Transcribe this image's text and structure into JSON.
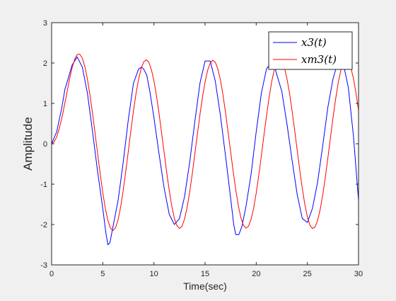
{
  "chart_data": {
    "type": "line",
    "title": "",
    "xlabel": "Time(sec)",
    "ylabel": "Amplitude",
    "xlim": [
      0,
      30
    ],
    "ylim": [
      -3,
      3
    ],
    "x_ticks": [
      0,
      5,
      10,
      15,
      20,
      25,
      30
    ],
    "y_ticks": [
      -3,
      -2,
      -1,
      0,
      1,
      2,
      3
    ],
    "x_tick_labels": [
      "0",
      "5",
      "10",
      "15",
      "20",
      "25",
      "30"
    ],
    "y_tick_labels": [
      "-3",
      "-2",
      "-1",
      "0",
      "1",
      "2",
      "3"
    ],
    "grid": false,
    "legend_position": "top-right",
    "series": [
      {
        "name": "x3(t)",
        "color": "#0000ff",
        "x": [
          0,
          0.5,
          1.0,
          1.3,
          1.6,
          2.0,
          2.5,
          3.0,
          3.5,
          4.0,
          4.5,
          5.0,
          5.3,
          5.5,
          5.7,
          6.0,
          6.5,
          7.0,
          7.5,
          8.0,
          8.5,
          8.8,
          9.0,
          9.3,
          9.6,
          10.0,
          10.5,
          11.0,
          11.5,
          12.0,
          12.5,
          13.0,
          13.5,
          14.0,
          14.5,
          15.0,
          15.5,
          16.0,
          16.5,
          17.0,
          17.5,
          17.8,
          18.0,
          18.3,
          18.6,
          19.0,
          19.5,
          20.0,
          20.5,
          21.0,
          21.4,
          21.8,
          22.2,
          22.5,
          23.0,
          23.5,
          24.0,
          24.5,
          25.0,
          25.5,
          26.0,
          26.5,
          27.0,
          27.5,
          28.0,
          28.5,
          29.0,
          29.5,
          30.0
        ],
        "y": [
          0.0,
          0.3,
          0.9,
          1.35,
          1.6,
          1.95,
          2.15,
          1.9,
          1.25,
          0.3,
          -0.7,
          -1.6,
          -2.2,
          -2.5,
          -2.45,
          -2.05,
          -1.4,
          -0.45,
          0.6,
          1.5,
          1.85,
          1.9,
          1.85,
          1.7,
          1.3,
          0.65,
          -0.25,
          -1.1,
          -1.75,
          -2.0,
          -1.85,
          -1.3,
          -0.45,
          0.55,
          1.5,
          2.05,
          2.05,
          1.55,
          0.7,
          -0.3,
          -1.35,
          -2.0,
          -2.25,
          -2.25,
          -2.05,
          -1.55,
          -0.75,
          0.3,
          1.25,
          1.85,
          2.0,
          1.9,
          1.55,
          1.3,
          0.5,
          -0.4,
          -1.25,
          -1.85,
          -1.95,
          -1.6,
          -0.95,
          -0.05,
          0.9,
          1.6,
          2.05,
          2.0,
          1.4,
          0.2,
          -1.4
        ]
      },
      {
        "name": "xm3(t)",
        "color": "#ff0000",
        "x": [
          0,
          0.25,
          0.5,
          0.75,
          1.0,
          1.25,
          1.5,
          1.75,
          2.0,
          2.25,
          2.5,
          2.75,
          3.0,
          3.25,
          3.5,
          3.75,
          4.0,
          4.25,
          4.5,
          4.75,
          5.0,
          5.25,
          5.5,
          5.75,
          6.0,
          6.25,
          6.5,
          6.75,
          7.0,
          7.25,
          7.5,
          7.75,
          8.0,
          8.25,
          8.5,
          8.75,
          9.0,
          9.25,
          9.5,
          9.75,
          10.0,
          10.25,
          10.5,
          10.75,
          11.0,
          11.25,
          11.5,
          11.75,
          12.0,
          12.25,
          12.5,
          12.75,
          13.0,
          13.25,
          13.5,
          13.75,
          14.0,
          14.25,
          14.5,
          14.75,
          15.0,
          15.25,
          15.5,
          15.75,
          16.0,
          16.25,
          16.5,
          16.75,
          17.0,
          17.25,
          17.5,
          17.75,
          18.0,
          18.25,
          18.5,
          18.75,
          19.0,
          19.25,
          19.5,
          19.75,
          20.0,
          20.25,
          20.5,
          20.75,
          21.0,
          21.25,
          21.5,
          21.75,
          22.0,
          22.25,
          22.5,
          22.75,
          23.0,
          23.25,
          23.5,
          23.75,
          24.0,
          24.25,
          24.5,
          24.75,
          25.0,
          25.25,
          25.5,
          25.75,
          26.0,
          26.25,
          26.5,
          26.75,
          27.0,
          27.25,
          27.5,
          27.75,
          28.0,
          28.25,
          28.5,
          28.75,
          29.0,
          29.25,
          29.5,
          29.75,
          30.0
        ],
        "y": [
          0.0,
          0.05,
          0.17,
          0.38,
          0.64,
          0.95,
          1.27,
          1.6,
          1.88,
          2.09,
          2.21,
          2.22,
          2.12,
          1.91,
          1.6,
          1.2,
          0.75,
          0.26,
          -0.25,
          -0.75,
          -1.21,
          -1.6,
          -1.9,
          -2.09,
          -2.15,
          -2.08,
          -1.88,
          -1.56,
          -1.15,
          -0.68,
          -0.18,
          0.33,
          0.81,
          1.24,
          1.6,
          1.86,
          2.03,
          2.08,
          2.02,
          1.84,
          1.56,
          1.19,
          0.75,
          0.27,
          -0.22,
          -0.71,
          -1.16,
          -1.55,
          -1.85,
          -2.03,
          -2.1,
          -2.04,
          -1.86,
          -1.57,
          -1.19,
          -0.74,
          -0.25,
          0.24,
          0.72,
          1.16,
          1.53,
          1.82,
          2.0,
          2.07,
          2.02,
          1.85,
          1.58,
          1.21,
          0.77,
          0.29,
          -0.2,
          -0.69,
          -1.14,
          -1.53,
          -1.83,
          -2.02,
          -2.09,
          -2.04,
          -1.87,
          -1.59,
          -1.22,
          -0.78,
          -0.3,
          0.2,
          0.68,
          1.13,
          1.52,
          1.82,
          2.02,
          2.09,
          2.05,
          1.89,
          1.62,
          1.26,
          0.83,
          0.35,
          -0.15,
          -0.64,
          -1.1,
          -1.5,
          -1.81,
          -2.02,
          -2.1,
          -2.06,
          -1.9,
          -1.63,
          -1.27,
          -0.84,
          -0.36,
          0.14,
          0.63,
          1.09,
          1.49,
          1.8,
          2.01,
          2.09,
          2.05,
          1.89,
          1.62,
          1.26,
          0.83
        ]
      }
    ]
  }
}
